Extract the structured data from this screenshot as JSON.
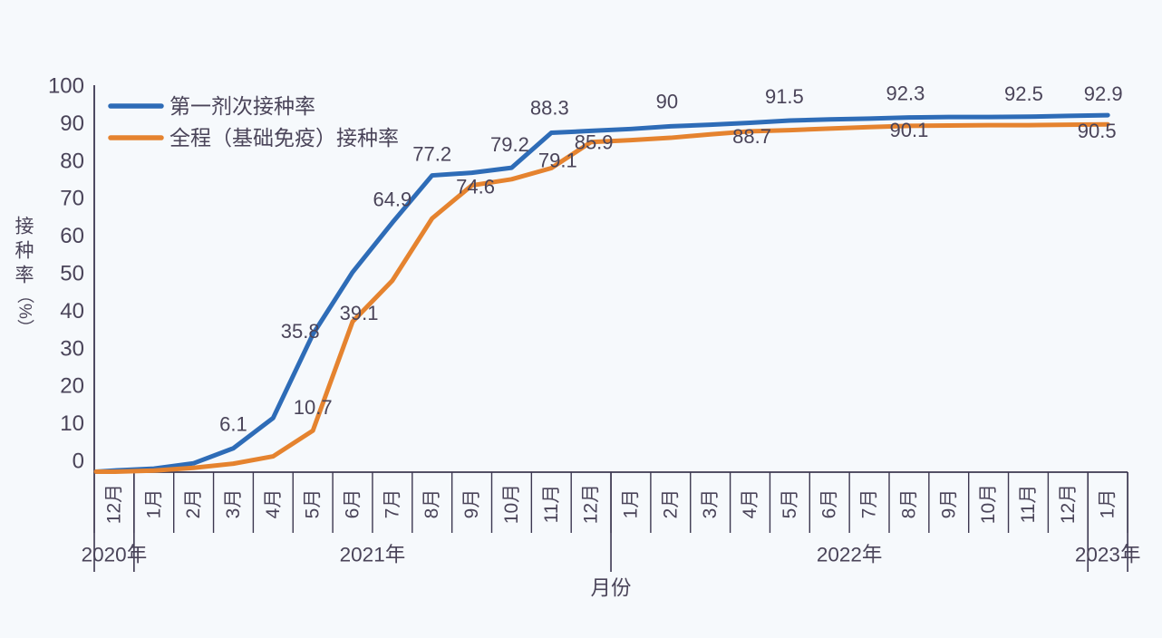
{
  "chart_data": {
    "type": "line",
    "title": "",
    "xlabel": "月份",
    "ylabel": "接种率（%）",
    "ylim": [
      0,
      100
    ],
    "ytick_step": 10,
    "yticks": [
      0,
      10,
      20,
      30,
      40,
      50,
      60,
      70,
      80,
      90,
      100
    ],
    "grid": false,
    "legend_position": "top-left",
    "colors": {
      "axis": "#3c3750",
      "text": "#4a4459"
    },
    "months": [
      "12月",
      "1月",
      "2月",
      "3月",
      "4月",
      "5月",
      "6月",
      "7月",
      "8月",
      "9月",
      "10月",
      "11月",
      "12月",
      "1月",
      "2月",
      "3月",
      "4月",
      "5月",
      "6月",
      "7月",
      "8月",
      "9月",
      "10月",
      "11月",
      "12月",
      "1月"
    ],
    "year_groups": [
      {
        "label": "2020年",
        "start": 0,
        "count": 1
      },
      {
        "label": "2021年",
        "start": 1,
        "count": 12
      },
      {
        "label": "2022年",
        "start": 13,
        "count": 12
      },
      {
        "label": "2023年",
        "start": 25,
        "count": 1
      }
    ],
    "series": [
      {
        "id": "first-dose",
        "name": "第一剂次接种率",
        "color": "#2e6cb7",
        "values": [
          0.3,
          0.8,
          2.2,
          6.1,
          14,
          35.8,
          52,
          64.9,
          77.2,
          77.9,
          79.2,
          88.3,
          88.8,
          89.3,
          90,
          90.4,
          90.9,
          91.5,
          91.8,
          92,
          92.3,
          92.4,
          92.4,
          92.5,
          92.7,
          92.9
        ],
        "point_labels": [
          {
            "i": 3,
            "text": "6.1",
            "dx": 0,
            "dy": -19
          },
          {
            "i": 5,
            "text": "35.8",
            "dx": -14,
            "dy": 4
          },
          {
            "i": 7,
            "text": "64.9",
            "dx": 0,
            "dy": -18
          },
          {
            "i": 8,
            "text": "77.2",
            "dx": 0,
            "dy": -16
          },
          {
            "i": 10,
            "text": "79.2",
            "dx": -2,
            "dy": -18
          },
          {
            "i": 11,
            "text": "88.3",
            "dx": -2,
            "dy": -20
          },
          {
            "i": 14,
            "text": "90",
            "dx": -4,
            "dy": -20
          },
          {
            "i": 17,
            "text": "91.5",
            "dx": -6,
            "dy": -19
          },
          {
            "i": 20,
            "text": "92.3",
            "dx": -4,
            "dy": -19
          },
          {
            "i": 23,
            "text": "92.5",
            "dx": -5,
            "dy": -18
          },
          {
            "i": 25,
            "text": "92.9",
            "dx": -5,
            "dy": -16
          }
        ]
      },
      {
        "id": "full-course",
        "name": "全程（基础免疫）接种率",
        "color": "#e5832f",
        "values": [
          0,
          0.3,
          1,
          2.1,
          4,
          10.7,
          39.1,
          49.8,
          66,
          74.6,
          76.2,
          79.1,
          85.9,
          86.4,
          87,
          87.9,
          88.7,
          89,
          89.4,
          89.8,
          90.1,
          90.2,
          90.3,
          90.3,
          90.4,
          90.5
        ],
        "point_labels": [
          {
            "i": 5,
            "text": "10.7",
            "dx": 0,
            "dy": -18
          },
          {
            "i": 6,
            "text": "39.1",
            "dx": 7,
            "dy": -2
          },
          {
            "i": 9,
            "text": "74.6",
            "dx": 4,
            "dy": 9
          },
          {
            "i": 11,
            "text": "79.1",
            "dx": 7,
            "dy": -1
          },
          {
            "i": 12,
            "text": "85.9",
            "dx": 3,
            "dy": 8
          },
          {
            "i": 16,
            "text": "88.7",
            "dx": 2,
            "dy": 13
          },
          {
            "i": 20,
            "text": "90.1",
            "dx": 0,
            "dy": 12
          },
          {
            "i": 25,
            "text": "90.5",
            "dx": -12,
            "dy": 15
          }
        ]
      }
    ]
  }
}
